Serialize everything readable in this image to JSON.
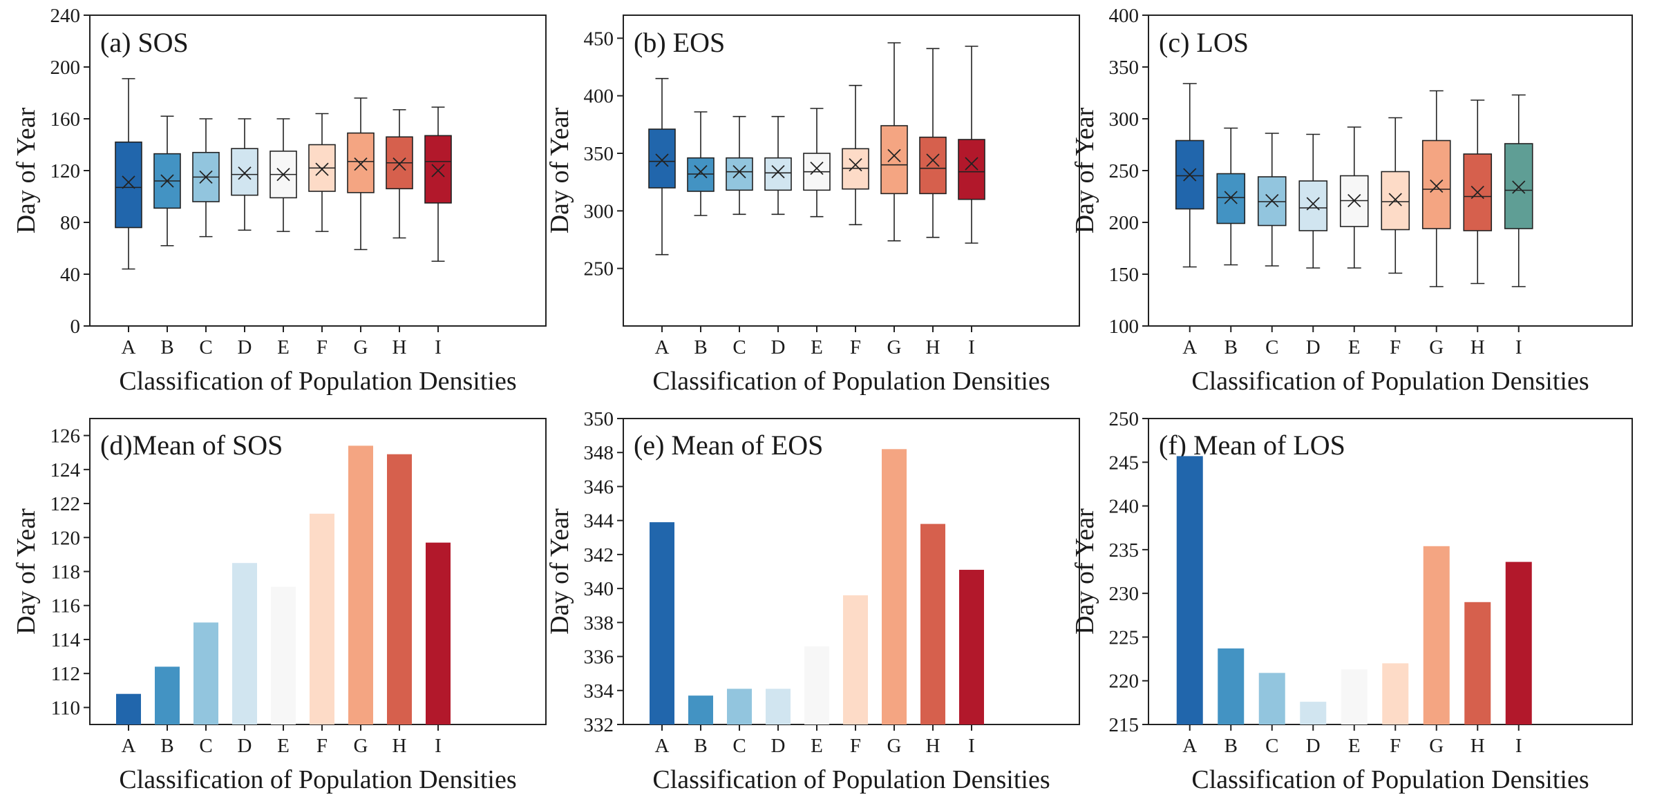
{
  "colors": {
    "A": "#2166ac",
    "B": "#4393c3",
    "C": "#92c5de",
    "D": "#d1e5f0",
    "E": "#f7f7f7",
    "F": "#fddbc7",
    "G": "#f4a582",
    "H": "#d6604d",
    "I": "#b2182b",
    "I_los": "#5f9e95"
  },
  "chart_data": [
    {
      "id": "a",
      "type": "box",
      "title": "(a) SOS",
      "xlabel": "Classification of Population Densities",
      "ylabel": "Day of Year",
      "ylim": [
        0,
        240
      ],
      "yticks": [
        "0",
        "40",
        "80",
        "120",
        "160",
        "200",
        "240"
      ],
      "categories": [
        "A",
        "B",
        "C",
        "D",
        "E",
        "F",
        "G",
        "H",
        "I"
      ],
      "boxes": [
        {
          "min": 44,
          "q1": 76,
          "median": 107,
          "q3": 142,
          "max": 191,
          "mean": 111
        },
        {
          "min": 62,
          "q1": 91,
          "median": 112,
          "q3": 133,
          "max": 162,
          "mean": 112
        },
        {
          "min": 69,
          "q1": 96,
          "median": 115,
          "q3": 134,
          "max": 160,
          "mean": 115
        },
        {
          "min": 74,
          "q1": 101,
          "median": 117,
          "q3": 137,
          "max": 160,
          "mean": 118
        },
        {
          "min": 73,
          "q1": 99,
          "median": 117,
          "q3": 135,
          "max": 160,
          "mean": 117
        },
        {
          "min": 73,
          "q1": 104,
          "median": 122,
          "q3": 140,
          "max": 164,
          "mean": 121
        },
        {
          "min": 59,
          "q1": 103,
          "median": 127,
          "q3": 149,
          "max": 176,
          "mean": 125
        },
        {
          "min": 68,
          "q1": 106,
          "median": 126,
          "q3": 146,
          "max": 167,
          "mean": 125
        },
        {
          "min": 50,
          "q1": 95,
          "median": 127,
          "q3": 147,
          "max": 169,
          "mean": 120
        }
      ]
    },
    {
      "id": "b",
      "type": "box",
      "title": "(b) EOS",
      "xlabel": "Classification of Population Densities",
      "ylabel": "Day of Year",
      "ylim": [
        200,
        470
      ],
      "yticks": [
        "250",
        "300",
        "350",
        "400",
        "450"
      ],
      "categories": [
        "A",
        "B",
        "C",
        "D",
        "E",
        "F",
        "G",
        "H",
        "I"
      ],
      "boxes": [
        {
          "min": 262,
          "q1": 320,
          "median": 343,
          "q3": 371,
          "max": 415,
          "mean": 344
        },
        {
          "min": 296,
          "q1": 317,
          "median": 332,
          "q3": 346,
          "max": 386,
          "mean": 334
        },
        {
          "min": 297,
          "q1": 318,
          "median": 334,
          "q3": 346,
          "max": 382,
          "mean": 334
        },
        {
          "min": 297,
          "q1": 318,
          "median": 333,
          "q3": 346,
          "max": 382,
          "mean": 334
        },
        {
          "min": 295,
          "q1": 318,
          "median": 334,
          "q3": 350,
          "max": 389,
          "mean": 337
        },
        {
          "min": 288,
          "q1": 319,
          "median": 337,
          "q3": 354,
          "max": 409,
          "mean": 340
        },
        {
          "min": 274,
          "q1": 315,
          "median": 340,
          "q3": 374,
          "max": 446,
          "mean": 348
        },
        {
          "min": 277,
          "q1": 315,
          "median": 337,
          "q3": 364,
          "max": 441,
          "mean": 344
        },
        {
          "min": 272,
          "q1": 310,
          "median": 334,
          "q3": 362,
          "max": 443,
          "mean": 341
        }
      ]
    },
    {
      "id": "c",
      "type": "box",
      "title": "(c) LOS",
      "xlabel": "Classification of Population Densities",
      "ylabel": "Day of Year",
      "ylim": [
        100,
        400
      ],
      "yticks": [
        "100",
        "150",
        "200",
        "250",
        "300",
        "350",
        "400"
      ],
      "categories": [
        "A",
        "B",
        "C",
        "D",
        "E",
        "F",
        "G",
        "H",
        "I"
      ],
      "boxes": [
        {
          "min": 157,
          "q1": 213,
          "median": 245,
          "q3": 279,
          "max": 334,
          "mean": 246
        },
        {
          "min": 159,
          "q1": 199,
          "median": 224,
          "q3": 247,
          "max": 291,
          "mean": 224
        },
        {
          "min": 158,
          "q1": 197,
          "median": 220,
          "q3": 244,
          "max": 286,
          "mean": 221
        },
        {
          "min": 156,
          "q1": 192,
          "median": 214,
          "q3": 240,
          "max": 285,
          "mean": 218
        },
        {
          "min": 156,
          "q1": 196,
          "median": 221,
          "q3": 245,
          "max": 292,
          "mean": 221
        },
        {
          "min": 151,
          "q1": 193,
          "median": 220,
          "q3": 249,
          "max": 301,
          "mean": 222
        },
        {
          "min": 138,
          "q1": 194,
          "median": 232,
          "q3": 279,
          "max": 327,
          "mean": 235
        },
        {
          "min": 141,
          "q1": 192,
          "median": 225,
          "q3": 266,
          "max": 318,
          "mean": 229
        },
        {
          "min": 138,
          "q1": 194,
          "median": 231,
          "q3": 276,
          "max": 323,
          "mean": 234
        }
      ]
    },
    {
      "id": "d",
      "type": "bar",
      "title": "(d)Mean of SOS",
      "xlabel": "Classification of Population Densities",
      "ylabel": "Day of Year",
      "ylim": [
        109,
        127
      ],
      "yticks": [
        "110",
        "112",
        "114",
        "116",
        "118",
        "120",
        "122",
        "124",
        "126"
      ],
      "categories": [
        "A",
        "B",
        "C",
        "D",
        "E",
        "F",
        "G",
        "H",
        "I"
      ],
      "values": [
        110.8,
        112.4,
        115.0,
        118.5,
        117.1,
        121.4,
        125.4,
        124.9,
        119.7
      ]
    },
    {
      "id": "e",
      "type": "bar",
      "title": "(e) Mean of EOS",
      "xlabel": "Classification of Population Densities",
      "ylabel": "Day of Year",
      "ylim": [
        332,
        350
      ],
      "yticks": [
        "332",
        "334",
        "336",
        "338",
        "340",
        "342",
        "344",
        "346",
        "348",
        "350"
      ],
      "categories": [
        "A",
        "B",
        "C",
        "D",
        "E",
        "F",
        "G",
        "H",
        "I"
      ],
      "values": [
        343.9,
        333.7,
        334.1,
        334.1,
        336.6,
        339.6,
        348.2,
        343.8,
        341.1
      ]
    },
    {
      "id": "f",
      "type": "bar",
      "title": "(f) Mean of LOS",
      "xlabel": "Classification of Population Densities",
      "ylabel": "Day of Year",
      "ylim": [
        215,
        250
      ],
      "yticks": [
        "215",
        "220",
        "225",
        "230",
        "235",
        "240",
        "245",
        "250"
      ],
      "categories": [
        "A",
        "B",
        "C",
        "D",
        "E",
        "F",
        "G",
        "H",
        "I"
      ],
      "values": [
        245.7,
        223.7,
        220.9,
        217.6,
        221.3,
        222.0,
        235.4,
        229.0,
        233.6
      ]
    }
  ]
}
